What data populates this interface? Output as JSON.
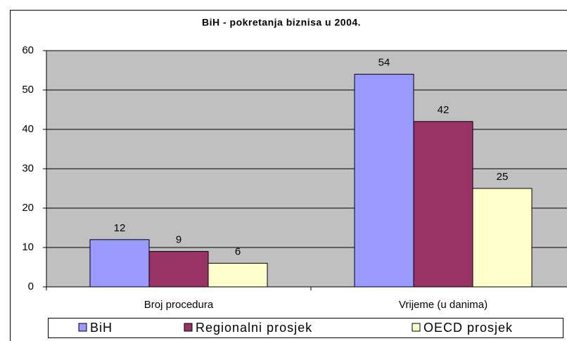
{
  "chart_data": {
    "type": "bar",
    "title": "BiH - pokretanja biznisa u 2004.",
    "categories": [
      "Broj procedura",
      "Vrijeme (u danima)"
    ],
    "series": [
      {
        "name": "BiH",
        "color": "#9999ff",
        "values": [
          12,
          54
        ]
      },
      {
        "name": "Regionalni prosjek",
        "color": "#993366",
        "values": [
          9,
          42
        ]
      },
      {
        "name": "OECD prosjek",
        "color": "#ffffcc",
        "values": [
          6,
          25
        ]
      }
    ],
    "ylim": [
      0,
      60
    ],
    "yticks": [
      0,
      10,
      20,
      30,
      40,
      50,
      60
    ],
    "grid": true,
    "legend": "bottom"
  }
}
